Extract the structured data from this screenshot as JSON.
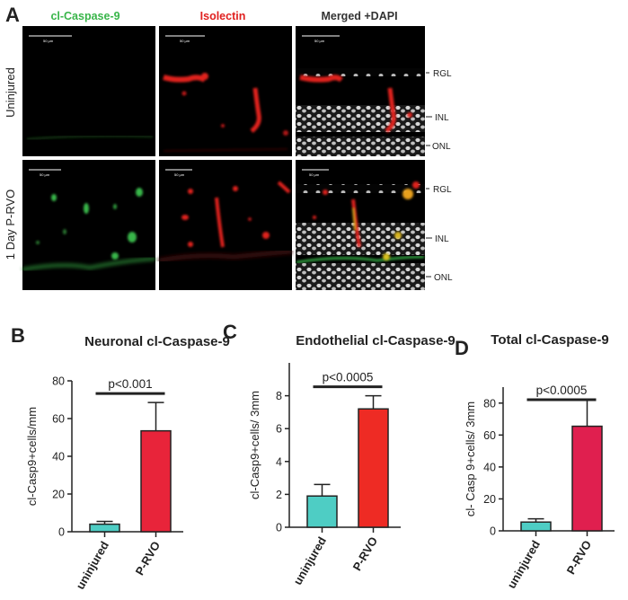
{
  "panel_a": {
    "letter": "A",
    "column_titles": [
      "cl-Caspase-9",
      "Isolectin",
      "Merged +DAPI"
    ],
    "column_colors": [
      "#39b54a",
      "#e0201f",
      "#333333"
    ],
    "row_labels": [
      "Uninjured",
      "1 Day P-RVO"
    ],
    "scale_bar_label": "50 µm",
    "layer_labels": {
      "row1": [
        "RGL",
        "INL",
        "ONL"
      ],
      "row2": [
        "RGL",
        "INL",
        "ONL"
      ]
    }
  },
  "chart_data": [
    {
      "panel": "B",
      "type": "bar",
      "title": "Neuronal cl-Caspase-9",
      "ylabel": "cl-Casp9+cells/mm",
      "xlabel": "",
      "categories": [
        "uninjured",
        "P-RVO"
      ],
      "values": [
        4,
        53.5
      ],
      "errors": [
        1.5,
        15
      ],
      "colors": [
        "#4ecdc4",
        "#e8243a"
      ],
      "ylim": [
        0,
        80
      ],
      "yticks": [
        0,
        20,
        40,
        60,
        80
      ],
      "annotation": "p<0.001",
      "grid": false
    },
    {
      "panel": "C",
      "type": "bar",
      "title": "Endothelial cl-Caspase-9",
      "ylabel": "cl-Casp9+cells/ 3mm",
      "xlabel": "",
      "categories": [
        "uninjured",
        "P-RVO"
      ],
      "values": [
        1.9,
        7.2
      ],
      "errors": [
        0.7,
        0.8
      ],
      "colors": [
        "#4ecdc4",
        "#ee2b24"
      ],
      "ylim": [
        0,
        10
      ],
      "yticks": [
        0,
        2,
        4,
        6,
        8
      ],
      "annotation": "p<0.0005",
      "grid": false
    },
    {
      "panel": "D",
      "type": "bar",
      "title": "Total cl-Caspase-9",
      "ylabel": "cl- Casp 9+cells/ 3mm",
      "xlabel": "",
      "categories": [
        "uninjured",
        "P-RVO"
      ],
      "values": [
        5.5,
        65.5
      ],
      "errors": [
        2,
        16.5
      ],
      "colors": [
        "#4ecdc4",
        "#e01f4f"
      ],
      "ylim": [
        0,
        90
      ],
      "yticks": [
        0,
        20,
        40,
        60,
        80
      ],
      "annotation": "p<0.0005",
      "grid": false
    }
  ]
}
